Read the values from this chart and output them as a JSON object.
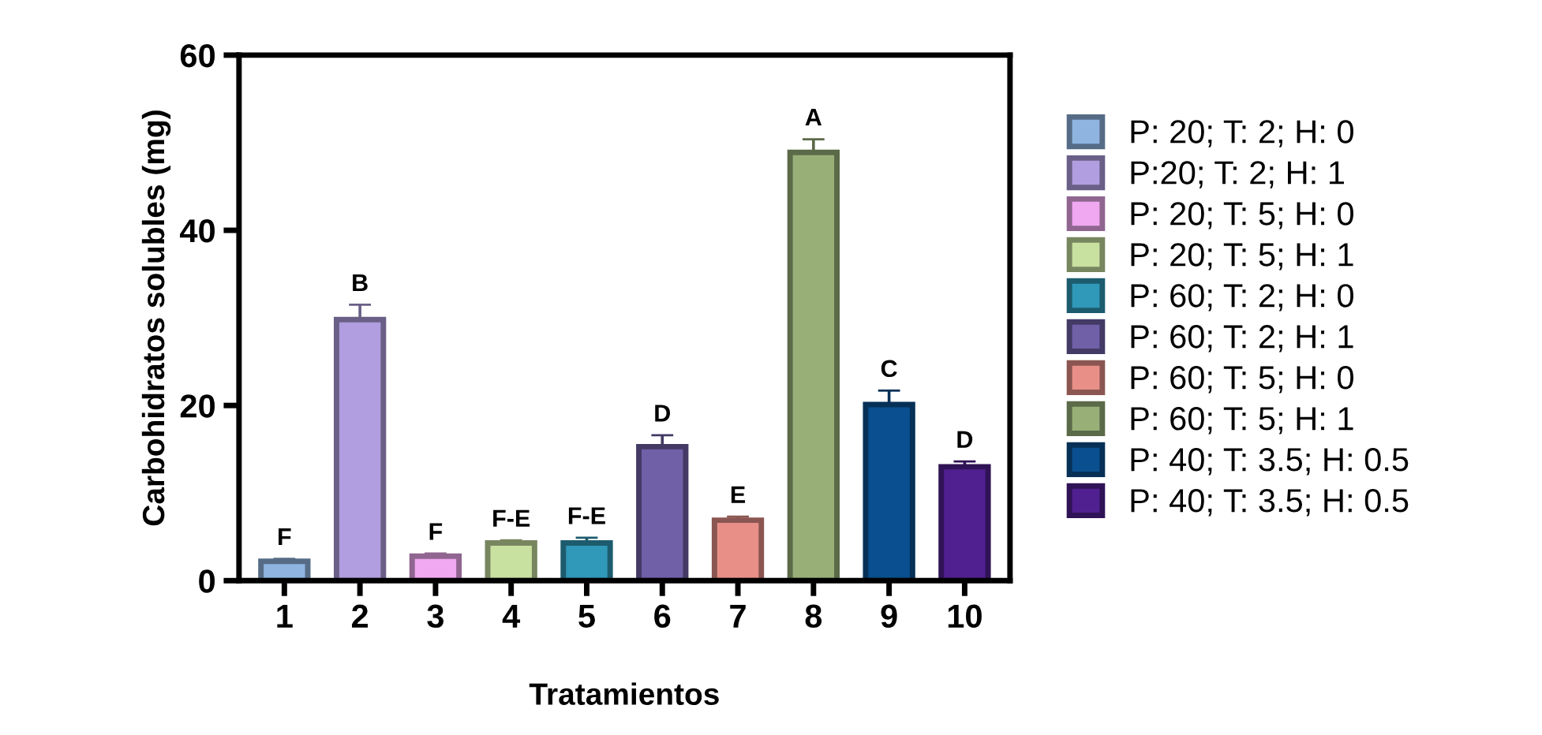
{
  "chart_data": {
    "type": "bar",
    "xlabel": "Tratamientos",
    "ylabel": "Carbohidratos solubles (mg)",
    "categories": [
      "1",
      "2",
      "3",
      "4",
      "5",
      "6",
      "7",
      "8",
      "9",
      "10"
    ],
    "ylim": [
      0,
      60
    ],
    "yticks": [
      0,
      20,
      40,
      60
    ],
    "grid": false,
    "legend": "right",
    "series": [
      {
        "name": "P: 20; T: 2; H: 0",
        "color": "#8fb4e0",
        "values": [
          2.2,
          null,
          null,
          null,
          null,
          null,
          null,
          null,
          null,
          null
        ],
        "errors": [
          0.3,
          null,
          null,
          null,
          null,
          null,
          null,
          null,
          null,
          null
        ]
      },
      {
        "name": "P:20; T: 2; H: 1",
        "color": "#b09ee0",
        "values": [
          null,
          29.8,
          null,
          null,
          null,
          null,
          null,
          null,
          null,
          null
        ],
        "errors": [
          null,
          1.7,
          null,
          null,
          null,
          null,
          null,
          null,
          null,
          null
        ]
      },
      {
        "name": "P: 20; T: 5; H: 0",
        "color": "#f0a8f0",
        "values": [
          null,
          null,
          2.8,
          null,
          null,
          null,
          null,
          null,
          null,
          null
        ],
        "errors": [
          null,
          null,
          0.3,
          null,
          null,
          null,
          null,
          null,
          null,
          null
        ]
      },
      {
        "name": "P: 20; T: 5; H: 1",
        "color": "#c8e0a0",
        "values": [
          null,
          null,
          null,
          4.3,
          null,
          null,
          null,
          null,
          null,
          null
        ],
        "errors": [
          null,
          null,
          null,
          0.3,
          null,
          null,
          null,
          null,
          null,
          null
        ]
      },
      {
        "name": "P: 60; T: 2; H: 0",
        "color": "#3098b8",
        "values": [
          null,
          null,
          null,
          null,
          4.3,
          null,
          null,
          null,
          null,
          null
        ],
        "errors": [
          null,
          null,
          null,
          null,
          0.6,
          null,
          null,
          null,
          null,
          null
        ]
      },
      {
        "name": "P: 60; T: 2; H: 1",
        "color": "#7060a8",
        "values": [
          null,
          null,
          null,
          null,
          null,
          15.3,
          null,
          null,
          null,
          null
        ],
        "errors": [
          null,
          null,
          null,
          null,
          null,
          1.3,
          null,
          null,
          null,
          null
        ]
      },
      {
        "name": "P: 60; T: 5; H: 0",
        "color": "#e89088",
        "values": [
          null,
          null,
          null,
          null,
          null,
          null,
          6.9,
          null,
          null,
          null
        ],
        "errors": [
          null,
          null,
          null,
          null,
          null,
          null,
          0.4,
          null,
          null,
          null
        ]
      },
      {
        "name": "P: 60; T: 5; H: 1",
        "color": "#98b078",
        "values": [
          null,
          null,
          null,
          null,
          null,
          null,
          null,
          48.9,
          null,
          null
        ],
        "errors": [
          null,
          null,
          null,
          null,
          null,
          null,
          null,
          1.5,
          null,
          null
        ]
      },
      {
        "name": "P: 40; T: 3.5; H: 0.5",
        "color": "#0a5090",
        "values": [
          null,
          null,
          null,
          null,
          null,
          null,
          null,
          null,
          20.1,
          null
        ],
        "errors": [
          null,
          null,
          null,
          null,
          null,
          null,
          null,
          null,
          1.6,
          null
        ]
      },
      {
        "name": "P: 40; T: 3.5; H: 0.5",
        "color": "#502090",
        "values": [
          null,
          null,
          null,
          null,
          null,
          null,
          null,
          null,
          null,
          13.0
        ],
        "errors": [
          null,
          null,
          null,
          null,
          null,
          null,
          null,
          null,
          null,
          0.6
        ]
      }
    ],
    "annotations": [
      {
        "text": "F",
        "x": "1",
        "y": 2.5
      },
      {
        "text": "B",
        "x": "2",
        "y": 31.5
      },
      {
        "text": "F",
        "x": "3",
        "y": 3.1
      },
      {
        "text": "F-E",
        "x": "4",
        "y": 4.6
      },
      {
        "text": "F-E",
        "x": "5",
        "y": 4.9
      },
      {
        "text": "D",
        "x": "6",
        "y": 16.6
      },
      {
        "text": "E",
        "x": "7",
        "y": 7.3
      },
      {
        "text": "A",
        "x": "8",
        "y": 50.4
      },
      {
        "text": "C",
        "x": "9",
        "y": 21.7
      },
      {
        "text": "D",
        "x": "10",
        "y": 13.6
      }
    ]
  }
}
